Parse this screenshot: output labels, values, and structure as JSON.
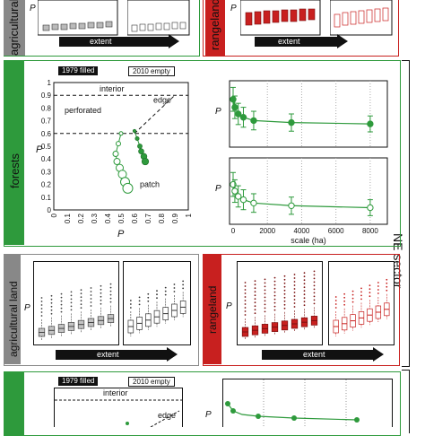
{
  "colors": {
    "green": "#2e9a3c",
    "red": "#c8201f",
    "gray": "#888888",
    "dark": "#111111"
  },
  "top_strip": {
    "left_label": "agricultural",
    "right_label": "rangeland",
    "axis_left": "P",
    "axis_right": "P",
    "extent_left": "extent",
    "extent_right": "extent"
  },
  "ne_sector": {
    "sector_label": "NE sector",
    "forests_label": "forests",
    "legend_filled": "1979 filled",
    "legend_empty": "2010 empty",
    "triangle": {
      "interior": "interior",
      "edge": "edge",
      "perforated": "perforated",
      "patch": "patch",
      "ylabel": "P",
      "xlabel": "P",
      "y_ticks": [
        "1",
        "0.9",
        "0.8",
        "0.7",
        "0.6",
        "0.5",
        "0.4",
        "0.3",
        "0.2",
        "0.1",
        "0"
      ],
      "x_ticks": [
        "0",
        "0.1",
        "0.2",
        "0.3",
        "0.4",
        "0.5",
        "0.6",
        "0.7",
        "0.8",
        "0.9",
        "1"
      ]
    },
    "scale": {
      "ylabel_top": "P",
      "ylabel_bottom": "P",
      "xlabel": "scale (ha)",
      "x_ticks": [
        "0",
        "2000",
        "4000",
        "6000",
        "8000"
      ]
    },
    "agricultural_land_label": "agricultural land",
    "agricultural_axis": "P",
    "agricultural_extent": "extent",
    "rangeland_label": "rangeland",
    "rangeland_axis": "P",
    "rangeland_extent": "extent"
  },
  "bottom_strip": {
    "legend_filled": "1979 filled",
    "legend_empty": "2010 empty",
    "interior": "interior",
    "edge": "edge",
    "axis": "P"
  }
}
